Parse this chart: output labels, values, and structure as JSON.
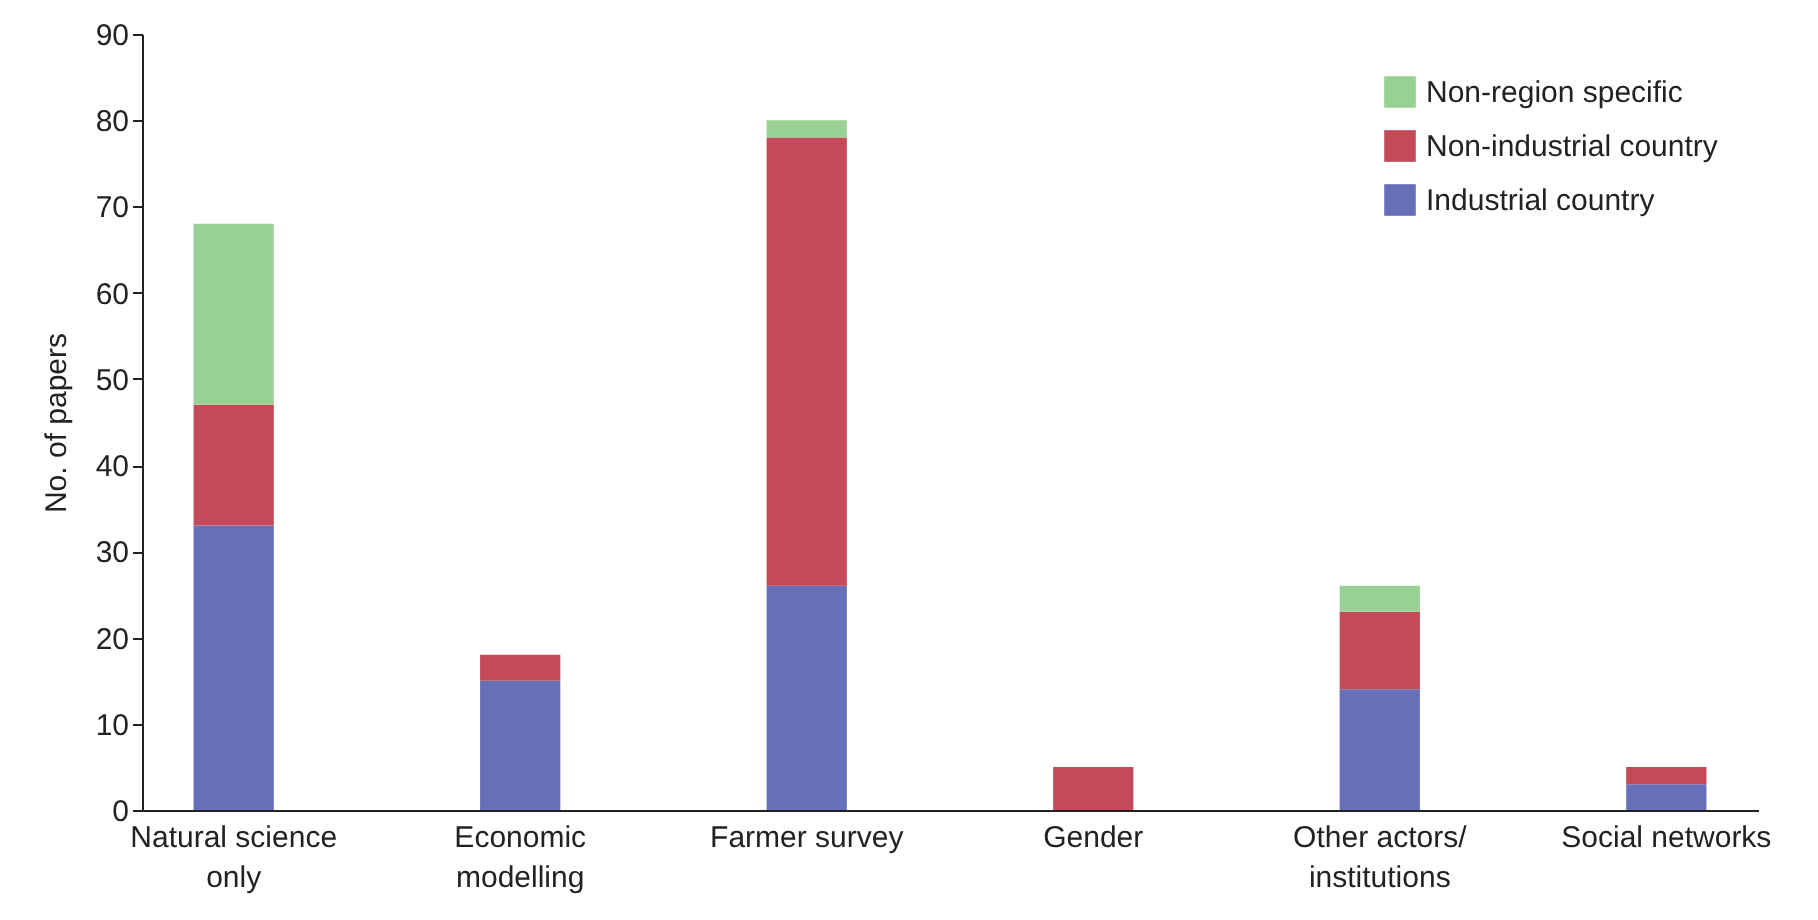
{
  "chart_data": {
    "type": "bar",
    "stacked": true,
    "ylabel": "No. of papers",
    "categories": [
      "Natural science\nonly",
      "Economic\nmodelling",
      "Farmer survey",
      "Gender",
      "Other actors/\ninstitutions",
      "Social networks"
    ],
    "series": [
      {
        "name": "Industrial country",
        "color": "#6670b8",
        "values": [
          33,
          15,
          26,
          0,
          14,
          3
        ]
      },
      {
        "name": "Non-industrial country",
        "color": "#c44a5a",
        "values": [
          14,
          3,
          52,
          5,
          9,
          2
        ]
      },
      {
        "name": "Non-region specific",
        "color": "#98d193",
        "values": [
          21,
          0,
          2,
          0,
          3,
          0
        ]
      }
    ],
    "ylim": [
      0,
      90
    ],
    "yticks": [
      0,
      10,
      20,
      30,
      40,
      50,
      60,
      70,
      80,
      90
    ],
    "grid": false,
    "legend": "top right"
  }
}
